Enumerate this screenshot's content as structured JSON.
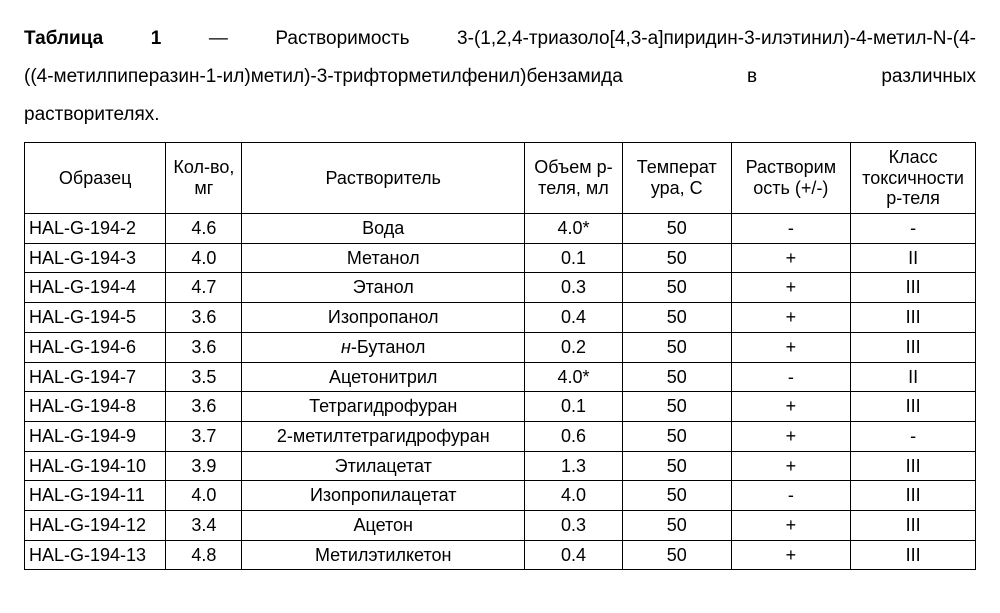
{
  "caption": {
    "label_bold": "Таблица 1",
    "dash": " — ",
    "line1_rest": "Растворимость 3-(1,2,4-триазоло[4,3-а]пиридин-3-илэтинил)-4-метил-N-(4-",
    "line2": "((4-метилпиперазин-1-ил)метил)-3-трифторметилфенил)бензамида         в         различных",
    "line3": "растворителях."
  },
  "table": {
    "columns": [
      "Образец",
      "Кол-во, мг",
      "Растворитель",
      "Объем р-теля, мл",
      "Температ ура, С",
      "Растворим ость (+/-)",
      "Класс токсичности р-теля"
    ],
    "col_align": [
      "left",
      "center",
      "center",
      "center",
      "center",
      "center",
      "center"
    ],
    "rows": [
      [
        "HAL-G-194-2",
        "4.6",
        "Вода",
        "4.0*",
        "50",
        "-",
        "-"
      ],
      [
        "HAL-G-194-3",
        "4.0",
        "Метанол",
        "0.1",
        "50",
        "+",
        "II"
      ],
      [
        "HAL-G-194-4",
        "4.7",
        "Этанол",
        "0.3",
        "50",
        "+",
        "III"
      ],
      [
        "HAL-G-194-5",
        "3.6",
        "Изопропанол",
        "0.4",
        "50",
        "+",
        "III"
      ],
      [
        "HAL-G-194-6",
        "3.6",
        "н-Бутанол",
        "0.2",
        "50",
        "+",
        "III"
      ],
      [
        "HAL-G-194-7",
        "3.5",
        "Ацетонитрил",
        "4.0*",
        "50",
        "-",
        "II"
      ],
      [
        "HAL-G-194-8",
        "3.6",
        "Тетрагидрофуран",
        "0.1",
        "50",
        "+",
        "III"
      ],
      [
        "HAL-G-194-9",
        "3.7",
        "2-метилтетрагидрофуран",
        "0.6",
        "50",
        "+",
        "-"
      ],
      [
        "HAL-G-194-10",
        "3.9",
        "Этилацетат",
        "1.3",
        "50",
        "+",
        "III"
      ],
      [
        "HAL-G-194-11",
        "4.0",
        "Изопропилацетат",
        "4.0",
        "50",
        "-",
        "III"
      ],
      [
        "HAL-G-194-12",
        "3.4",
        "Ацетон",
        "0.3",
        "50",
        "+",
        "III"
      ],
      [
        "HAL-G-194-13",
        "4.8",
        "Метилэтилкетон",
        "0.4",
        "50",
        "+",
        "III"
      ]
    ],
    "italic_cells": [
      {
        "row": 4,
        "col": 2
      }
    ]
  },
  "styles": {
    "background_color": "#ffffff",
    "text_color": "#000000",
    "border_color": "#000000",
    "caption_fontsize": 19,
    "table_fontsize": 18
  }
}
